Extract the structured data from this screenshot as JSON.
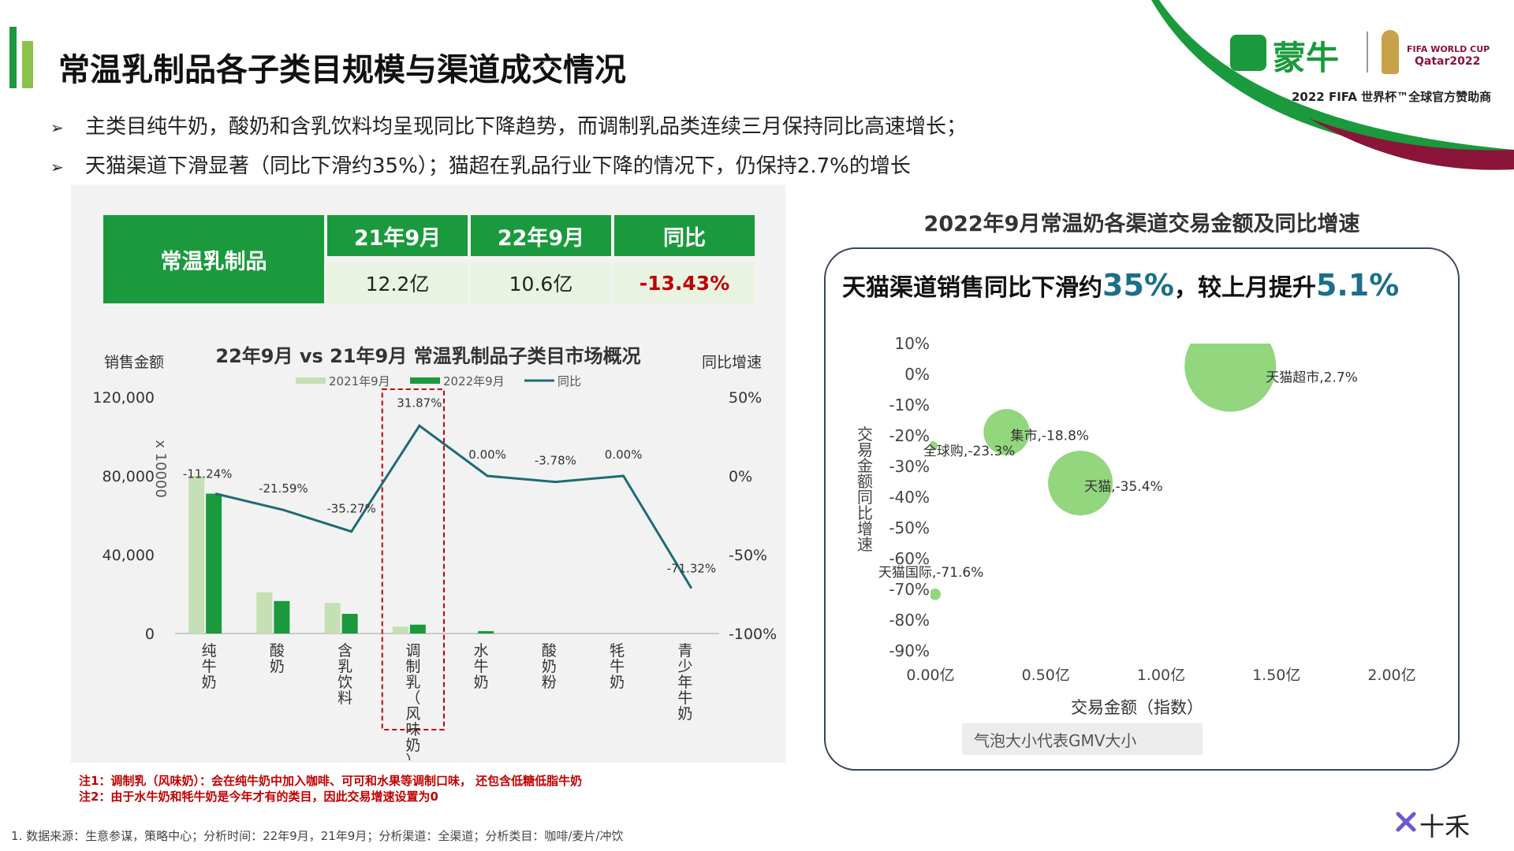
{
  "header": {
    "title": "常温乳制品各子类目规模与渠道成交情况",
    "bullets": [
      "主类目纯牛奶，酸奶和含乳饮料均呈现同比下降趋势，而调制乳品类连续三月保持同比高速增长；",
      "天猫渠道下滑显著（同比下滑约35%）；猫超在乳品行业下降的情况下，仍保持2.7%的增长"
    ],
    "bullet_arrow": "➢"
  },
  "logo": {
    "brand": "蒙牛",
    "fifa_line1": "FIFA WORLD CUP",
    "fifa_line2": "Qatar2022",
    "sponsor": "2022 FIFA 世界杯™全球官方赞助商",
    "bottom_brand": "十禾",
    "colors": {
      "green": "#1a9a3c",
      "maroon": "#8a1538"
    }
  },
  "summary_table": {
    "row_header": "常温乳制品",
    "columns": [
      "21年9月",
      "22年9月",
      "同比"
    ],
    "values": [
      "12.2亿",
      "10.6亿",
      "-13.43%"
    ]
  },
  "notes": [
    "注1：调制乳（风味奶）：会在纯牛奶中加入咖啡、可可和水果等调制口味， 还包含低糖低脂牛奶",
    "注2：由于水牛奶和牦牛奶是今年才有的类目，因此交易增速设置为0"
  ],
  "source": "1.    数据来源：生意参谋，策略中心；分析时间：22年9月，21年9月；分析渠道：全渠道；分析类目：咖啡/麦片/冲饮",
  "chart_data": [
    {
      "type": "bar",
      "title": "22年9月 vs 21年9月 常温乳制品子类目市场概况",
      "ylabel": "销售金额",
      "y_unit": "x 10000",
      "y2label": "同比增速",
      "categories": [
        "纯牛奶",
        "酸奶",
        "含乳饮料",
        "调制乳（风味奶）",
        "水牛奶",
        "酸奶粉",
        "牦牛奶",
        "青少年牛奶"
      ],
      "series": [
        {
          "name": "2021年9月",
          "type": "bar",
          "values": [
            80000,
            21000,
            15500,
            3500,
            0,
            0,
            0,
            0
          ],
          "color": "#c5e0b4"
        },
        {
          "name": "2022年9月",
          "type": "bar",
          "values": [
            71000,
            16500,
            10000,
            4500,
            1200,
            0,
            0,
            0
          ],
          "color": "#1a9a3c"
        },
        {
          "name": "同比",
          "type": "line",
          "axis": "right",
          "values": [
            -11.24,
            -21.59,
            -35.27,
            31.87,
            0.0,
            -3.78,
            0.0,
            -71.32
          ],
          "color": "#1e6b75"
        }
      ],
      "data_labels": [
        "-11.24%",
        "-21.59%",
        "-35.27%",
        "31.87%",
        "0.00%",
        "-3.78%",
        "0.00%",
        "-71.32%"
      ],
      "ylim": [
        0,
        120000
      ],
      "y_ticks": [
        "0",
        "40,000",
        "80,000",
        "120,000"
      ],
      "y2lim": [
        -100,
        50
      ],
      "y2_ticks": [
        "-100%",
        "-50%",
        "0%",
        "50%"
      ],
      "highlight_category": "调制乳（风味奶）",
      "legend_position": "top"
    },
    {
      "type": "scatter",
      "subtype": "bubble",
      "title": "2022年9月常温奶各渠道交易金额及同比增速",
      "headline_prefix": "天猫渠道销售同比下滑约",
      "headline_value1": "35%",
      "headline_mid": "，较上月提升",
      "headline_value2": "5.1%",
      "xlabel": "交易金额（指数）",
      "ylabel": "交易金额同比增速",
      "xlim": [
        0,
        2.0
      ],
      "ylim": [
        -90,
        10
      ],
      "x_ticks": [
        "0.00亿",
        "0.50亿",
        "1.00亿",
        "1.50亿",
        "2.00亿"
      ],
      "y_ticks": [
        "10%",
        "0%",
        "-10%",
        "-20%",
        "-30%",
        "-40%",
        "-50%",
        "-60%",
        "-70%",
        "-80%",
        "-90%"
      ],
      "note": "气泡大小代表GMV大小",
      "color": "#92d67e",
      "points": [
        {
          "label": "天猫超市,2.7%",
          "x": 1.3,
          "y": 2.7,
          "size": 1.3
        },
        {
          "label": "集市,-18.8%",
          "x": 0.33,
          "y": -18.8,
          "size": 0.33
        },
        {
          "label": "全球购,-23.3%",
          "x": 0.01,
          "y": -23.3,
          "size": 0.01
        },
        {
          "label": "天猫,-35.4%",
          "x": 0.65,
          "y": -35.4,
          "size": 0.65
        },
        {
          "label": "天猫国际,-71.6%",
          "x": 0.02,
          "y": -71.6,
          "size": 0.02
        }
      ]
    }
  ]
}
